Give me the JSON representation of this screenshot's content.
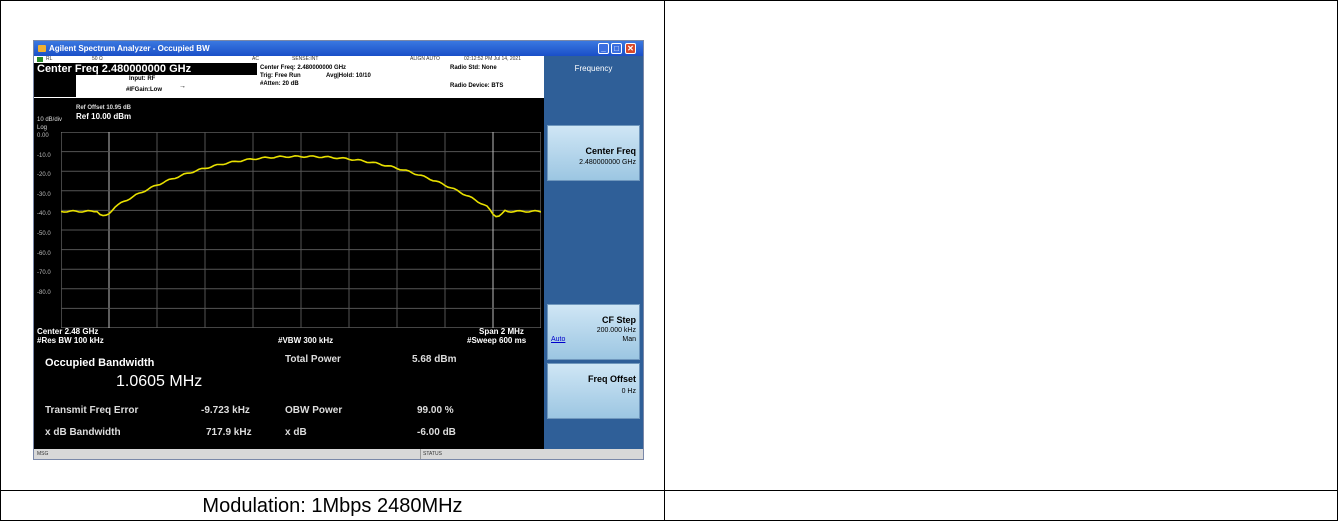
{
  "window": {
    "title": "Agilent Spectrum Analyzer - Occupied BW",
    "minimize": "_",
    "maximize": "□",
    "close": "✕"
  },
  "menubar": {
    "rl": "RL",
    "ohms": "50 Ω",
    "ac": "AC",
    "sense": "SENSE:INT",
    "align": "ALIGN AUTO",
    "time": "02:12:52 PM Jul 14, 2021"
  },
  "header": {
    "center_freq": "Center Freq  2.480000000 GHz",
    "input": "Input: RF",
    "if_gain": "#IFGain:Low",
    "center_freq_small": "Center Freq: 2.480000000 GHz",
    "trig": "Trig: Free Run",
    "avg_hold": "Avg|Hold: 10/10",
    "atten": "#Atten: 20 dB",
    "radio_std": "Radio Std: None",
    "radio_device": "Radio Device: BTS"
  },
  "display": {
    "ref_offset": "Ref Offset 10.95 dB",
    "scale": "10 dB/div",
    "ref_level": "Ref  10.00 dBm",
    "log": "Log",
    "y_ticks": [
      "0.00",
      "-10.0",
      "-20.0",
      "-30.0",
      "-40.0",
      "-50.0",
      "-60.0",
      "-70.0",
      "-80.0"
    ],
    "center": "Center  2.48 GHz",
    "res_bw": "#Res BW  100 kHz",
    "vbw": "#VBW  300 kHz",
    "span": "Span 2 MHz",
    "sweep": "#Sweep  600 ms",
    "trace_color": "#e8e000"
  },
  "results": {
    "occupied_bw_label": "Occupied Bandwidth",
    "occupied_bw_value": "1.0605 MHz",
    "total_power_label": "Total Power",
    "total_power_value": "5.68 dBm",
    "tx_freq_error_label": "Transmit Freq Error",
    "tx_freq_error_value": "-9.723 kHz",
    "obw_power_label": "OBW Power",
    "obw_power_value": "99.00 %",
    "xdb_bw_label": "x dB Bandwidth",
    "xdb_bw_value": "717.9 kHz",
    "xdb_label": "x dB",
    "xdb_value": "-6.00 dB"
  },
  "statusbar": {
    "msg": "MSG",
    "status": "STATUS"
  },
  "panel": {
    "title": "Frequency",
    "center_freq_label": "Center Freq",
    "center_freq_value": "2.480000000 GHz",
    "cf_step_label": "CF Step",
    "cf_step_value": "200.000 kHz",
    "cf_step_auto": "Auto",
    "cf_step_man": "Man",
    "freq_offset_label": "Freq Offset",
    "freq_offset_value": "0 Hz"
  },
  "caption": "Modulation: 1Mbps 2480MHz"
}
